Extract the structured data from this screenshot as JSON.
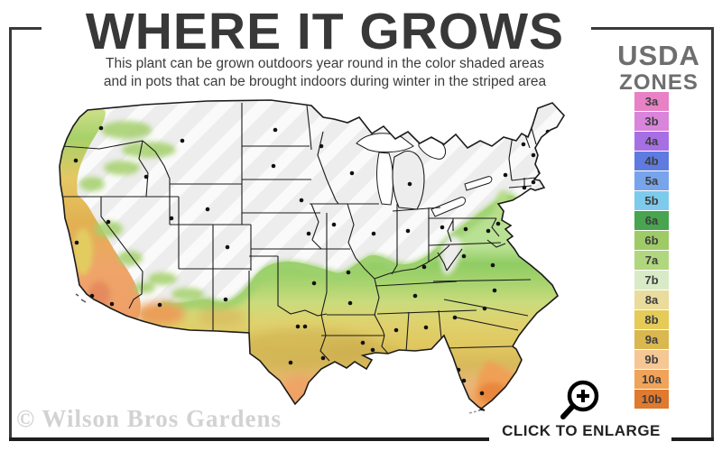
{
  "header": {
    "title": "WHERE IT GROWS",
    "subtitle_line1": "This plant can be grown outdoors year round in the color shaded areas",
    "subtitle_line2": "and in pots that can be brought indoors during winter in the striped area"
  },
  "legend": {
    "title_line1": "USDA",
    "title_line2": "ZONES",
    "zones": [
      {
        "label": "3a",
        "color": "#E881C6"
      },
      {
        "label": "3b",
        "color": "#DA85DC"
      },
      {
        "label": "4a",
        "color": "#A76FE4"
      },
      {
        "label": "4b",
        "color": "#5E7BE0"
      },
      {
        "label": "5a",
        "color": "#77A4EB"
      },
      {
        "label": "5b",
        "color": "#7DCBEC"
      },
      {
        "label": "6a",
        "color": "#48A44F"
      },
      {
        "label": "6b",
        "color": "#9ECB66"
      },
      {
        "label": "7a",
        "color": "#B0D77E"
      },
      {
        "label": "7b",
        "color": "#D9EBC6"
      },
      {
        "label": "8a",
        "color": "#E9DC9C"
      },
      {
        "label": "8b",
        "color": "#E5CB58"
      },
      {
        "label": "9a",
        "color": "#DAB84F"
      },
      {
        "label": "9b",
        "color": "#F5C794"
      },
      {
        "label": "10a",
        "color": "#F1A359"
      },
      {
        "label": "10b",
        "color": "#DF7A2E"
      }
    ]
  },
  "map": {
    "uncolored_fill": "#EDEDED",
    "outline_color": "#1B1B1B",
    "stripe_color": "#FFFFFF"
  },
  "footer": {
    "watermark": "© Wilson Bros Gardens",
    "enlarge_label": "CLICK TO ENLARGE"
  }
}
